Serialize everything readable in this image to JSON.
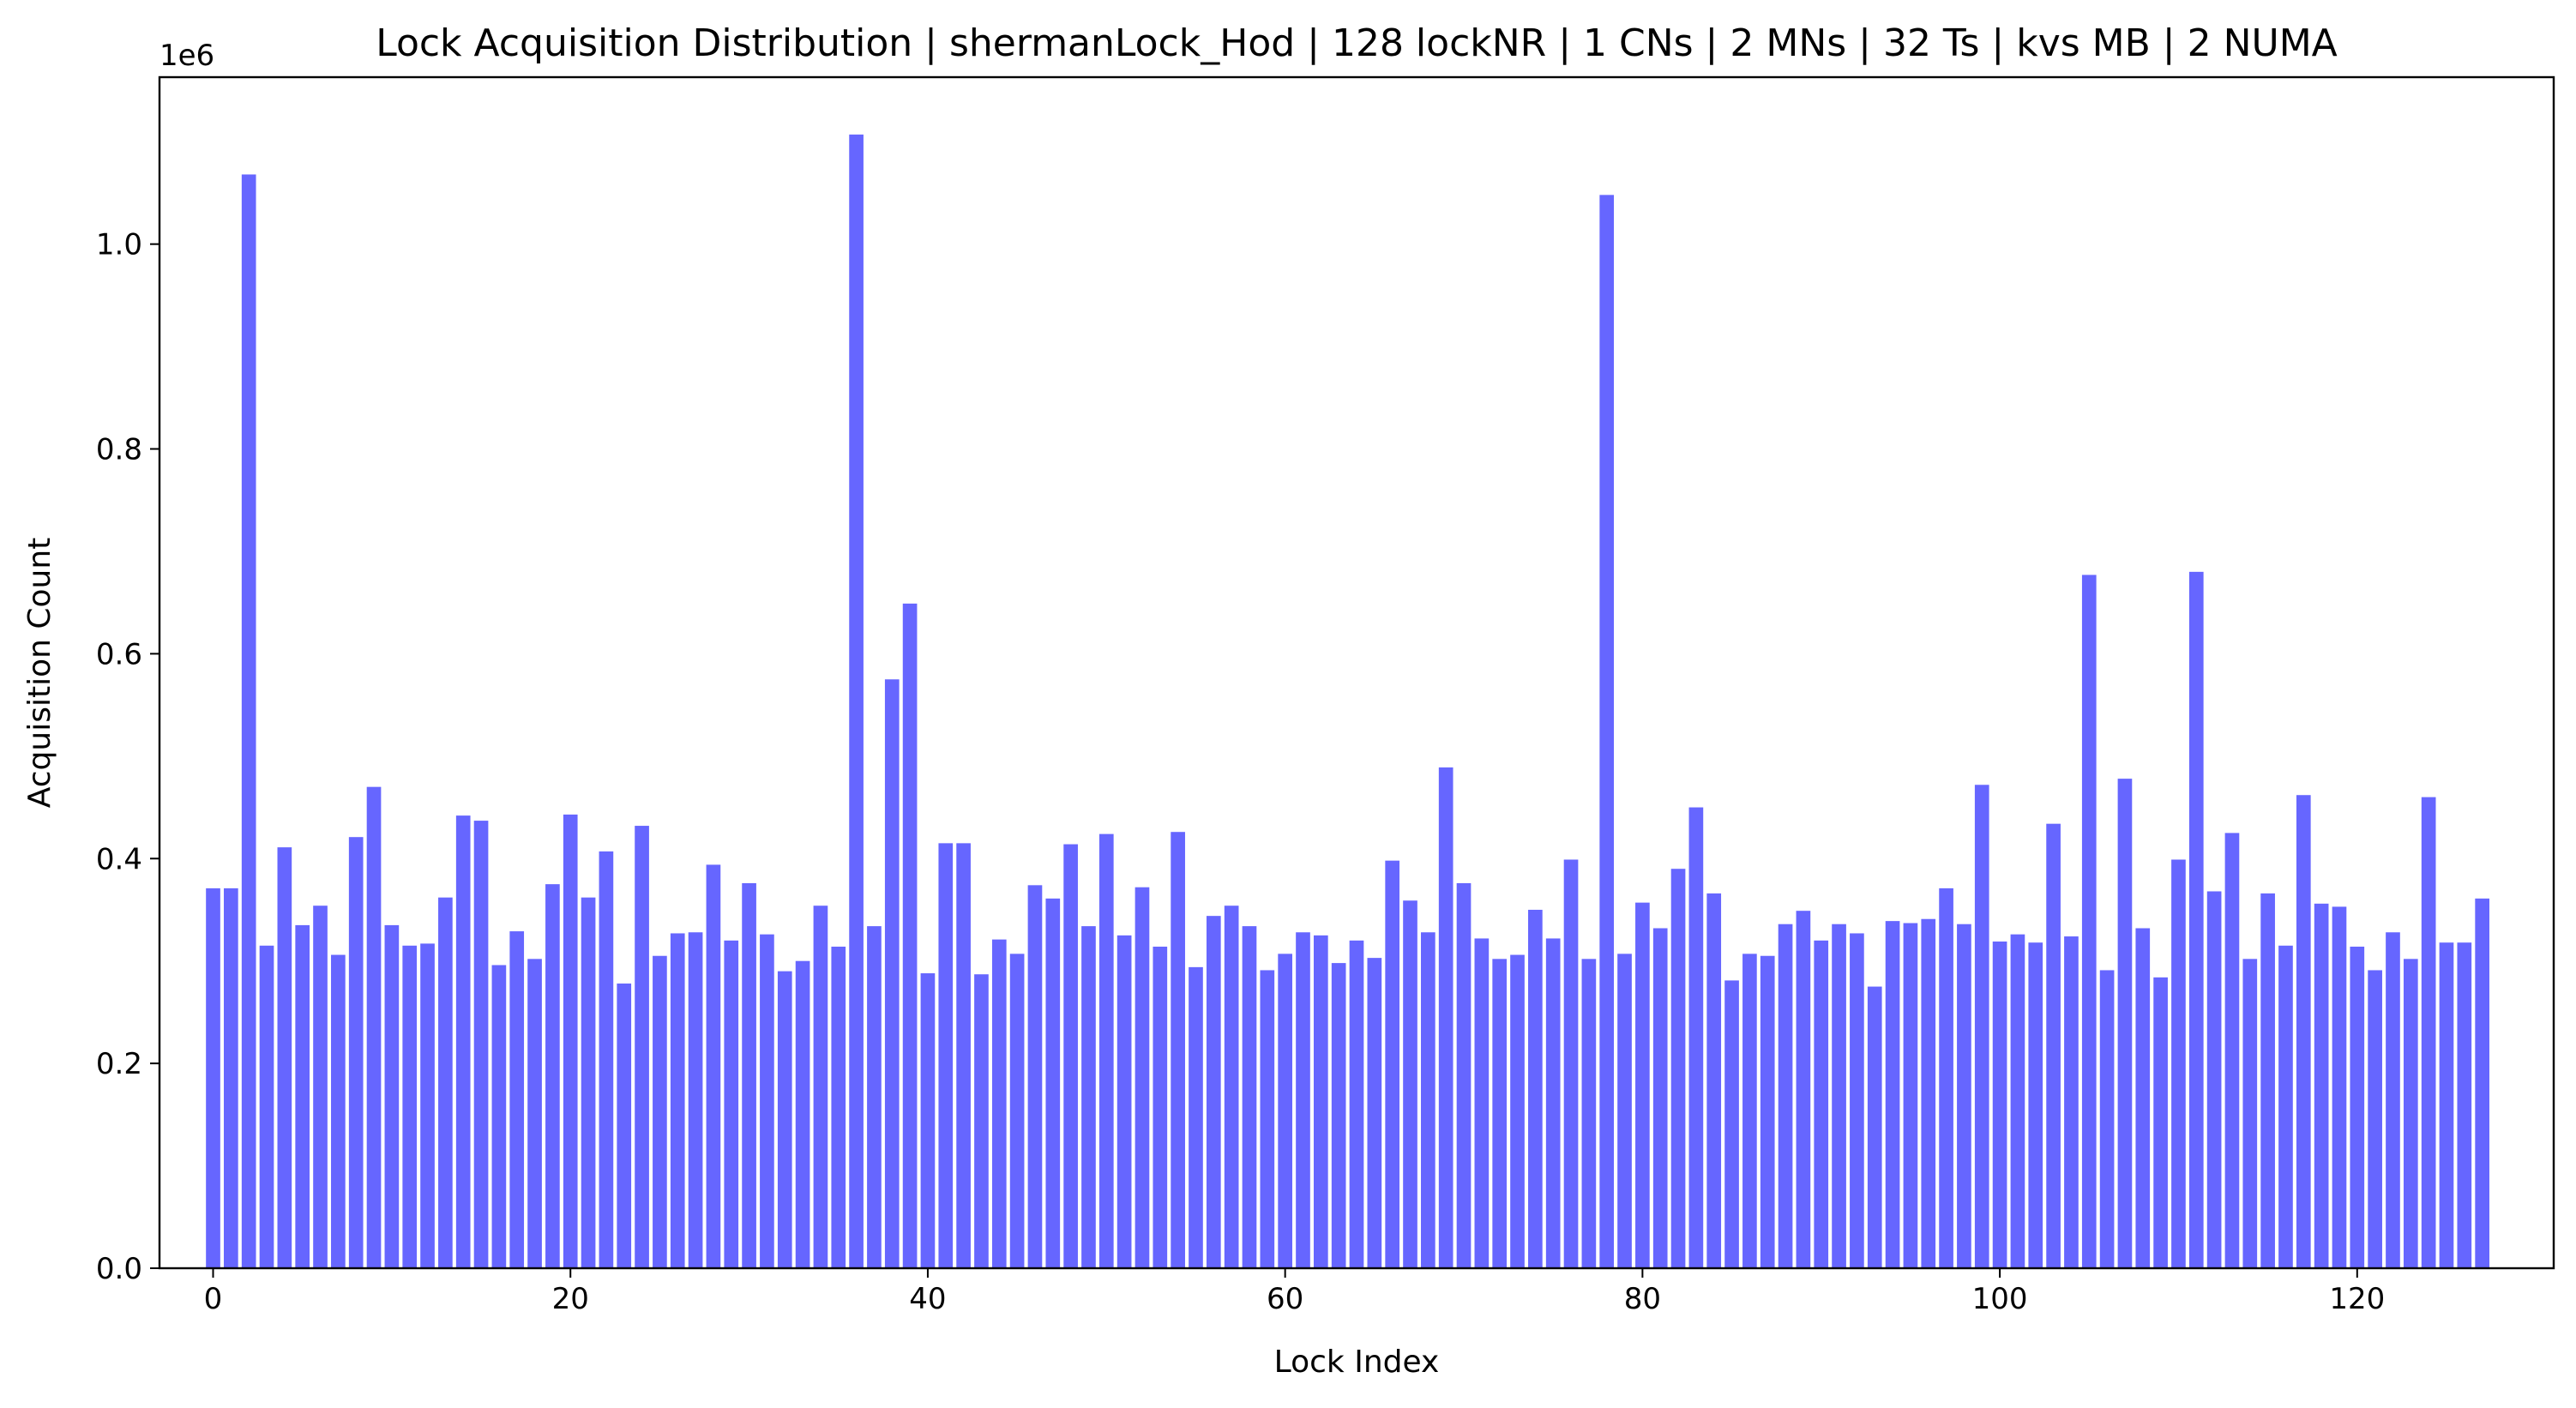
{
  "chart_data": {
    "type": "bar",
    "title": "Lock Acquisition Distribution | shermanLock_Hod | 128 lockNR | 1 CNs | 2 MNs | 32 Ts | kvs MB | 2 NUMA",
    "xlabel": "Lock Index",
    "ylabel": "Acquisition Count",
    "y_offset_label": "1e6",
    "bar_color": "#6666ff",
    "grid": false,
    "legend": "none",
    "xlim": [
      -3,
      131
    ],
    "ylim": [
      0,
      1.163
    ],
    "x_ticks": [
      0,
      20,
      40,
      60,
      80,
      100,
      120
    ],
    "x_tick_labels": [
      "0",
      "20",
      "40",
      "60",
      "80",
      "100",
      "120"
    ],
    "y_ticks": [
      0.0,
      0.2,
      0.4,
      0.6,
      0.8,
      1.0
    ],
    "y_tick_labels": [
      "0.0",
      "0.2",
      "0.4",
      "0.6",
      "0.8",
      "1.0"
    ],
    "x": [
      0,
      1,
      2,
      3,
      4,
      5,
      6,
      7,
      8,
      9,
      10,
      11,
      12,
      13,
      14,
      15,
      16,
      17,
      18,
      19,
      20,
      21,
      22,
      23,
      24,
      25,
      26,
      27,
      28,
      29,
      30,
      31,
      32,
      33,
      34,
      35,
      36,
      37,
      38,
      39,
      40,
      41,
      42,
      43,
      44,
      45,
      46,
      47,
      48,
      49,
      50,
      51,
      52,
      53,
      54,
      55,
      56,
      57,
      58,
      59,
      60,
      61,
      62,
      63,
      64,
      65,
      66,
      67,
      68,
      69,
      70,
      71,
      72,
      73,
      74,
      75,
      76,
      77,
      78,
      79,
      80,
      81,
      82,
      83,
      84,
      85,
      86,
      87,
      88,
      89,
      90,
      91,
      92,
      93,
      94,
      95,
      96,
      97,
      98,
      99,
      100,
      101,
      102,
      103,
      104,
      105,
      106,
      107,
      108,
      109,
      110,
      111,
      112,
      113,
      114,
      115,
      116,
      117,
      118,
      119,
      120,
      121,
      122,
      123,
      124,
      125,
      126,
      127
    ],
    "values": [
      0.371,
      0.371,
      1.068,
      0.315,
      0.411,
      0.335,
      0.354,
      0.306,
      0.421,
      0.47,
      0.335,
      0.315,
      0.317,
      0.362,
      0.442,
      0.437,
      0.296,
      0.329,
      0.302,
      0.375,
      0.443,
      0.362,
      0.407,
      0.278,
      0.432,
      0.305,
      0.327,
      0.328,
      0.394,
      0.32,
      0.376,
      0.326,
      0.29,
      0.3,
      0.354,
      0.314,
      1.107,
      0.334,
      0.575,
      0.649,
      0.288,
      0.415,
      0.415,
      0.287,
      0.321,
      0.307,
      0.374,
      0.361,
      0.414,
      0.334,
      0.424,
      0.325,
      0.372,
      0.314,
      0.426,
      0.294,
      0.344,
      0.354,
      0.334,
      0.291,
      0.307,
      0.328,
      0.325,
      0.298,
      0.32,
      0.303,
      0.398,
      0.359,
      0.328,
      0.489,
      0.376,
      0.322,
      0.302,
      0.306,
      0.35,
      0.322,
      0.399,
      0.302,
      1.048,
      0.307,
      0.357,
      0.332,
      0.39,
      0.45,
      0.366,
      0.281,
      0.307,
      0.305,
      0.336,
      0.349,
      0.32,
      0.336,
      0.327,
      0.275,
      0.339,
      0.337,
      0.341,
      0.371,
      0.336,
      0.472,
      0.319,
      0.326,
      0.318,
      0.434,
      0.324,
      0.677,
      0.291,
      0.478,
      0.332,
      0.284,
      0.399,
      0.68,
      0.368,
      0.425,
      0.302,
      0.366,
      0.315,
      0.462,
      0.356,
      0.353,
      0.314,
      0.291,
      0.328,
      0.302,
      0.46,
      0.318,
      0.318,
      0.361
    ]
  }
}
